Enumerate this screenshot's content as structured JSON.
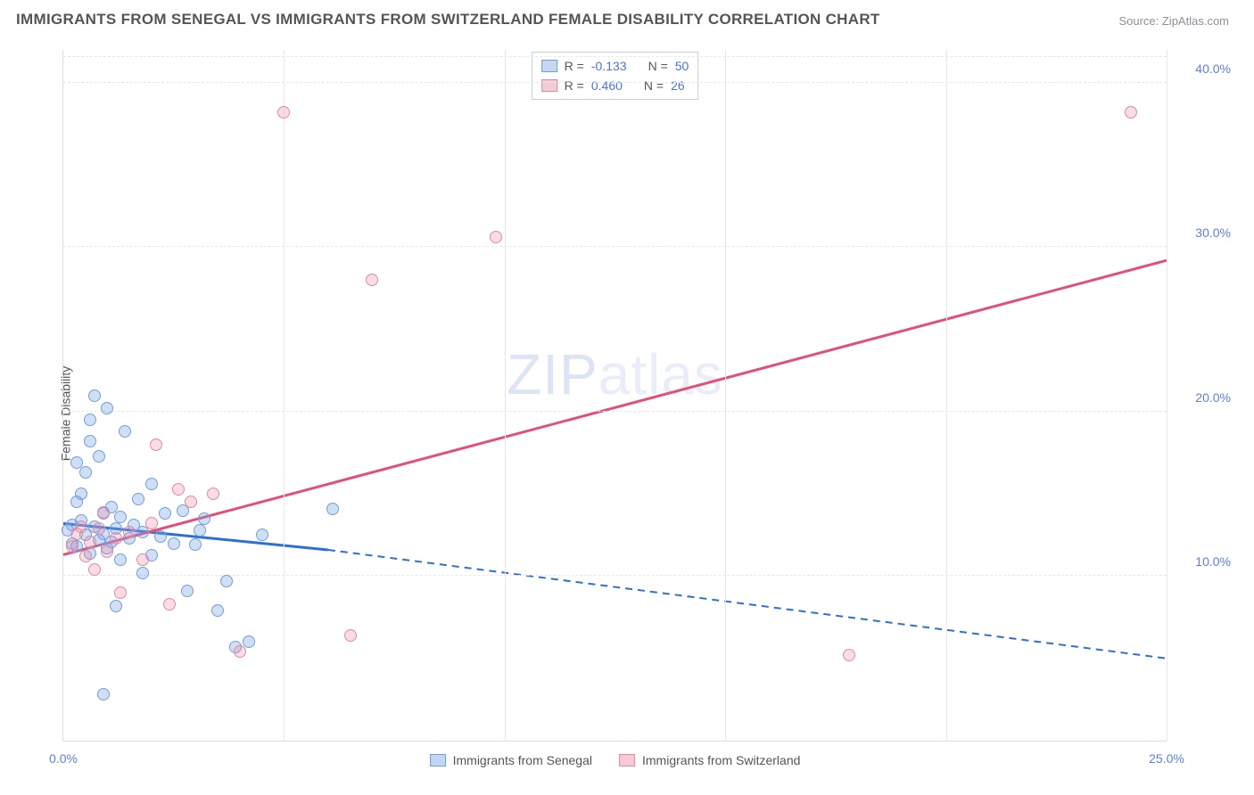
{
  "title": "IMMIGRANTS FROM SENEGAL VS IMMIGRANTS FROM SWITZERLAND FEMALE DISABILITY CORRELATION CHART",
  "source": "Source: ZipAtlas.com",
  "y_axis_label": "Female Disability",
  "watermark": {
    "bold": "ZIP",
    "thin": "atlas"
  },
  "chart": {
    "type": "scatter",
    "xlim": [
      0,
      25
    ],
    "ylim": [
      0,
      42
    ],
    "y_ticks": [
      10.0,
      20.0,
      30.0,
      40.0
    ],
    "y_tick_labels": [
      "10.0%",
      "20.0%",
      "30.0%",
      "40.0%"
    ],
    "x_ticks": [
      0.0,
      25.0
    ],
    "x_tick_labels": [
      "0.0%",
      "25.0%"
    ],
    "x_grid_count": 5,
    "grid_color": "#e5e7ec",
    "background_color": "#ffffff",
    "series": [
      {
        "name": "Immigrants from Senegal",
        "color_fill": "rgba(122,164,226,0.35)",
        "color_stroke": "#6f9fe0",
        "reg_color": "#2b6fd7",
        "reg": {
          "x1": 0,
          "y1": 13.2,
          "x2_solid": 6.0,
          "y2_solid": 11.6,
          "x2": 25,
          "y2": 5.0
        },
        "R": "-0.133",
        "N": "50",
        "points": [
          [
            0.1,
            12.8
          ],
          [
            0.2,
            13.1
          ],
          [
            0.2,
            12.0
          ],
          [
            0.3,
            14.5
          ],
          [
            0.3,
            11.8
          ],
          [
            0.4,
            13.4
          ],
          [
            0.4,
            15.0
          ],
          [
            0.5,
            16.3
          ],
          [
            0.5,
            12.5
          ],
          [
            0.6,
            18.2
          ],
          [
            0.6,
            11.4
          ],
          [
            0.7,
            21.0
          ],
          [
            0.7,
            13.0
          ],
          [
            0.8,
            12.2
          ],
          [
            0.8,
            17.3
          ],
          [
            0.9,
            13.9
          ],
          [
            0.9,
            12.6
          ],
          [
            1.0,
            11.7
          ],
          [
            1.0,
            20.2
          ],
          [
            1.1,
            12.1
          ],
          [
            1.1,
            14.2
          ],
          [
            1.2,
            12.9
          ],
          [
            1.3,
            13.6
          ],
          [
            1.3,
            11.0
          ],
          [
            1.4,
            18.8
          ],
          [
            1.5,
            12.3
          ],
          [
            1.6,
            13.1
          ],
          [
            1.7,
            14.7
          ],
          [
            1.8,
            10.2
          ],
          [
            1.8,
            12.7
          ],
          [
            2.0,
            11.3
          ],
          [
            2.0,
            15.6
          ],
          [
            2.2,
            12.4
          ],
          [
            2.3,
            13.8
          ],
          [
            2.5,
            12.0
          ],
          [
            2.7,
            14.0
          ],
          [
            2.8,
            9.1
          ],
          [
            3.0,
            11.9
          ],
          [
            3.1,
            12.8
          ],
          [
            3.2,
            13.5
          ],
          [
            3.5,
            7.9
          ],
          [
            3.7,
            9.7
          ],
          [
            3.9,
            5.7
          ],
          [
            4.2,
            6.0
          ],
          [
            4.5,
            12.5
          ],
          [
            1.2,
            8.2
          ],
          [
            0.9,
            2.8
          ],
          [
            6.1,
            14.1
          ],
          [
            0.3,
            16.9
          ],
          [
            0.6,
            19.5
          ]
        ]
      },
      {
        "name": "Immigrants from Switzerland",
        "color_fill": "rgba(236,140,164,0.30)",
        "color_stroke": "#e08aa2",
        "reg_color": "#e24f7a",
        "reg": {
          "x1": 0,
          "y1": 11.3,
          "x2_solid": 25,
          "y2_solid": 29.2,
          "x2": 25,
          "y2": 29.2
        },
        "R": "0.460",
        "N": "26",
        "points": [
          [
            0.2,
            11.8
          ],
          [
            0.3,
            12.6
          ],
          [
            0.4,
            13.0
          ],
          [
            0.5,
            11.2
          ],
          [
            0.6,
            12.1
          ],
          [
            0.7,
            10.4
          ],
          [
            0.8,
            12.9
          ],
          [
            0.9,
            13.8
          ],
          [
            1.0,
            11.5
          ],
          [
            1.2,
            12.3
          ],
          [
            1.3,
            9.0
          ],
          [
            1.5,
            12.7
          ],
          [
            1.8,
            11.0
          ],
          [
            2.0,
            13.2
          ],
          [
            2.1,
            18.0
          ],
          [
            2.4,
            8.3
          ],
          [
            2.6,
            15.3
          ],
          [
            2.9,
            14.5
          ],
          [
            3.4,
            15.0
          ],
          [
            4.0,
            5.4
          ],
          [
            5.0,
            38.2
          ],
          [
            6.5,
            6.4
          ],
          [
            7.0,
            28.0
          ],
          [
            9.8,
            30.6
          ],
          [
            17.8,
            5.2
          ],
          [
            24.2,
            38.2
          ]
        ]
      }
    ]
  },
  "stats_legend": {
    "rows": [
      {
        "swatch": "blue",
        "r_label": "R =",
        "r_value": "-0.133",
        "n_label": "N =",
        "n_value": "50"
      },
      {
        "swatch": "pink",
        "r_label": "R =",
        "r_value": "0.460",
        "n_label": "N =",
        "n_value": "26"
      }
    ]
  },
  "bottom_legend": [
    {
      "swatch": "blue",
      "label": "Immigrants from Senegal"
    },
    {
      "swatch": "pink",
      "label": "Immigrants from Switzerland"
    }
  ]
}
